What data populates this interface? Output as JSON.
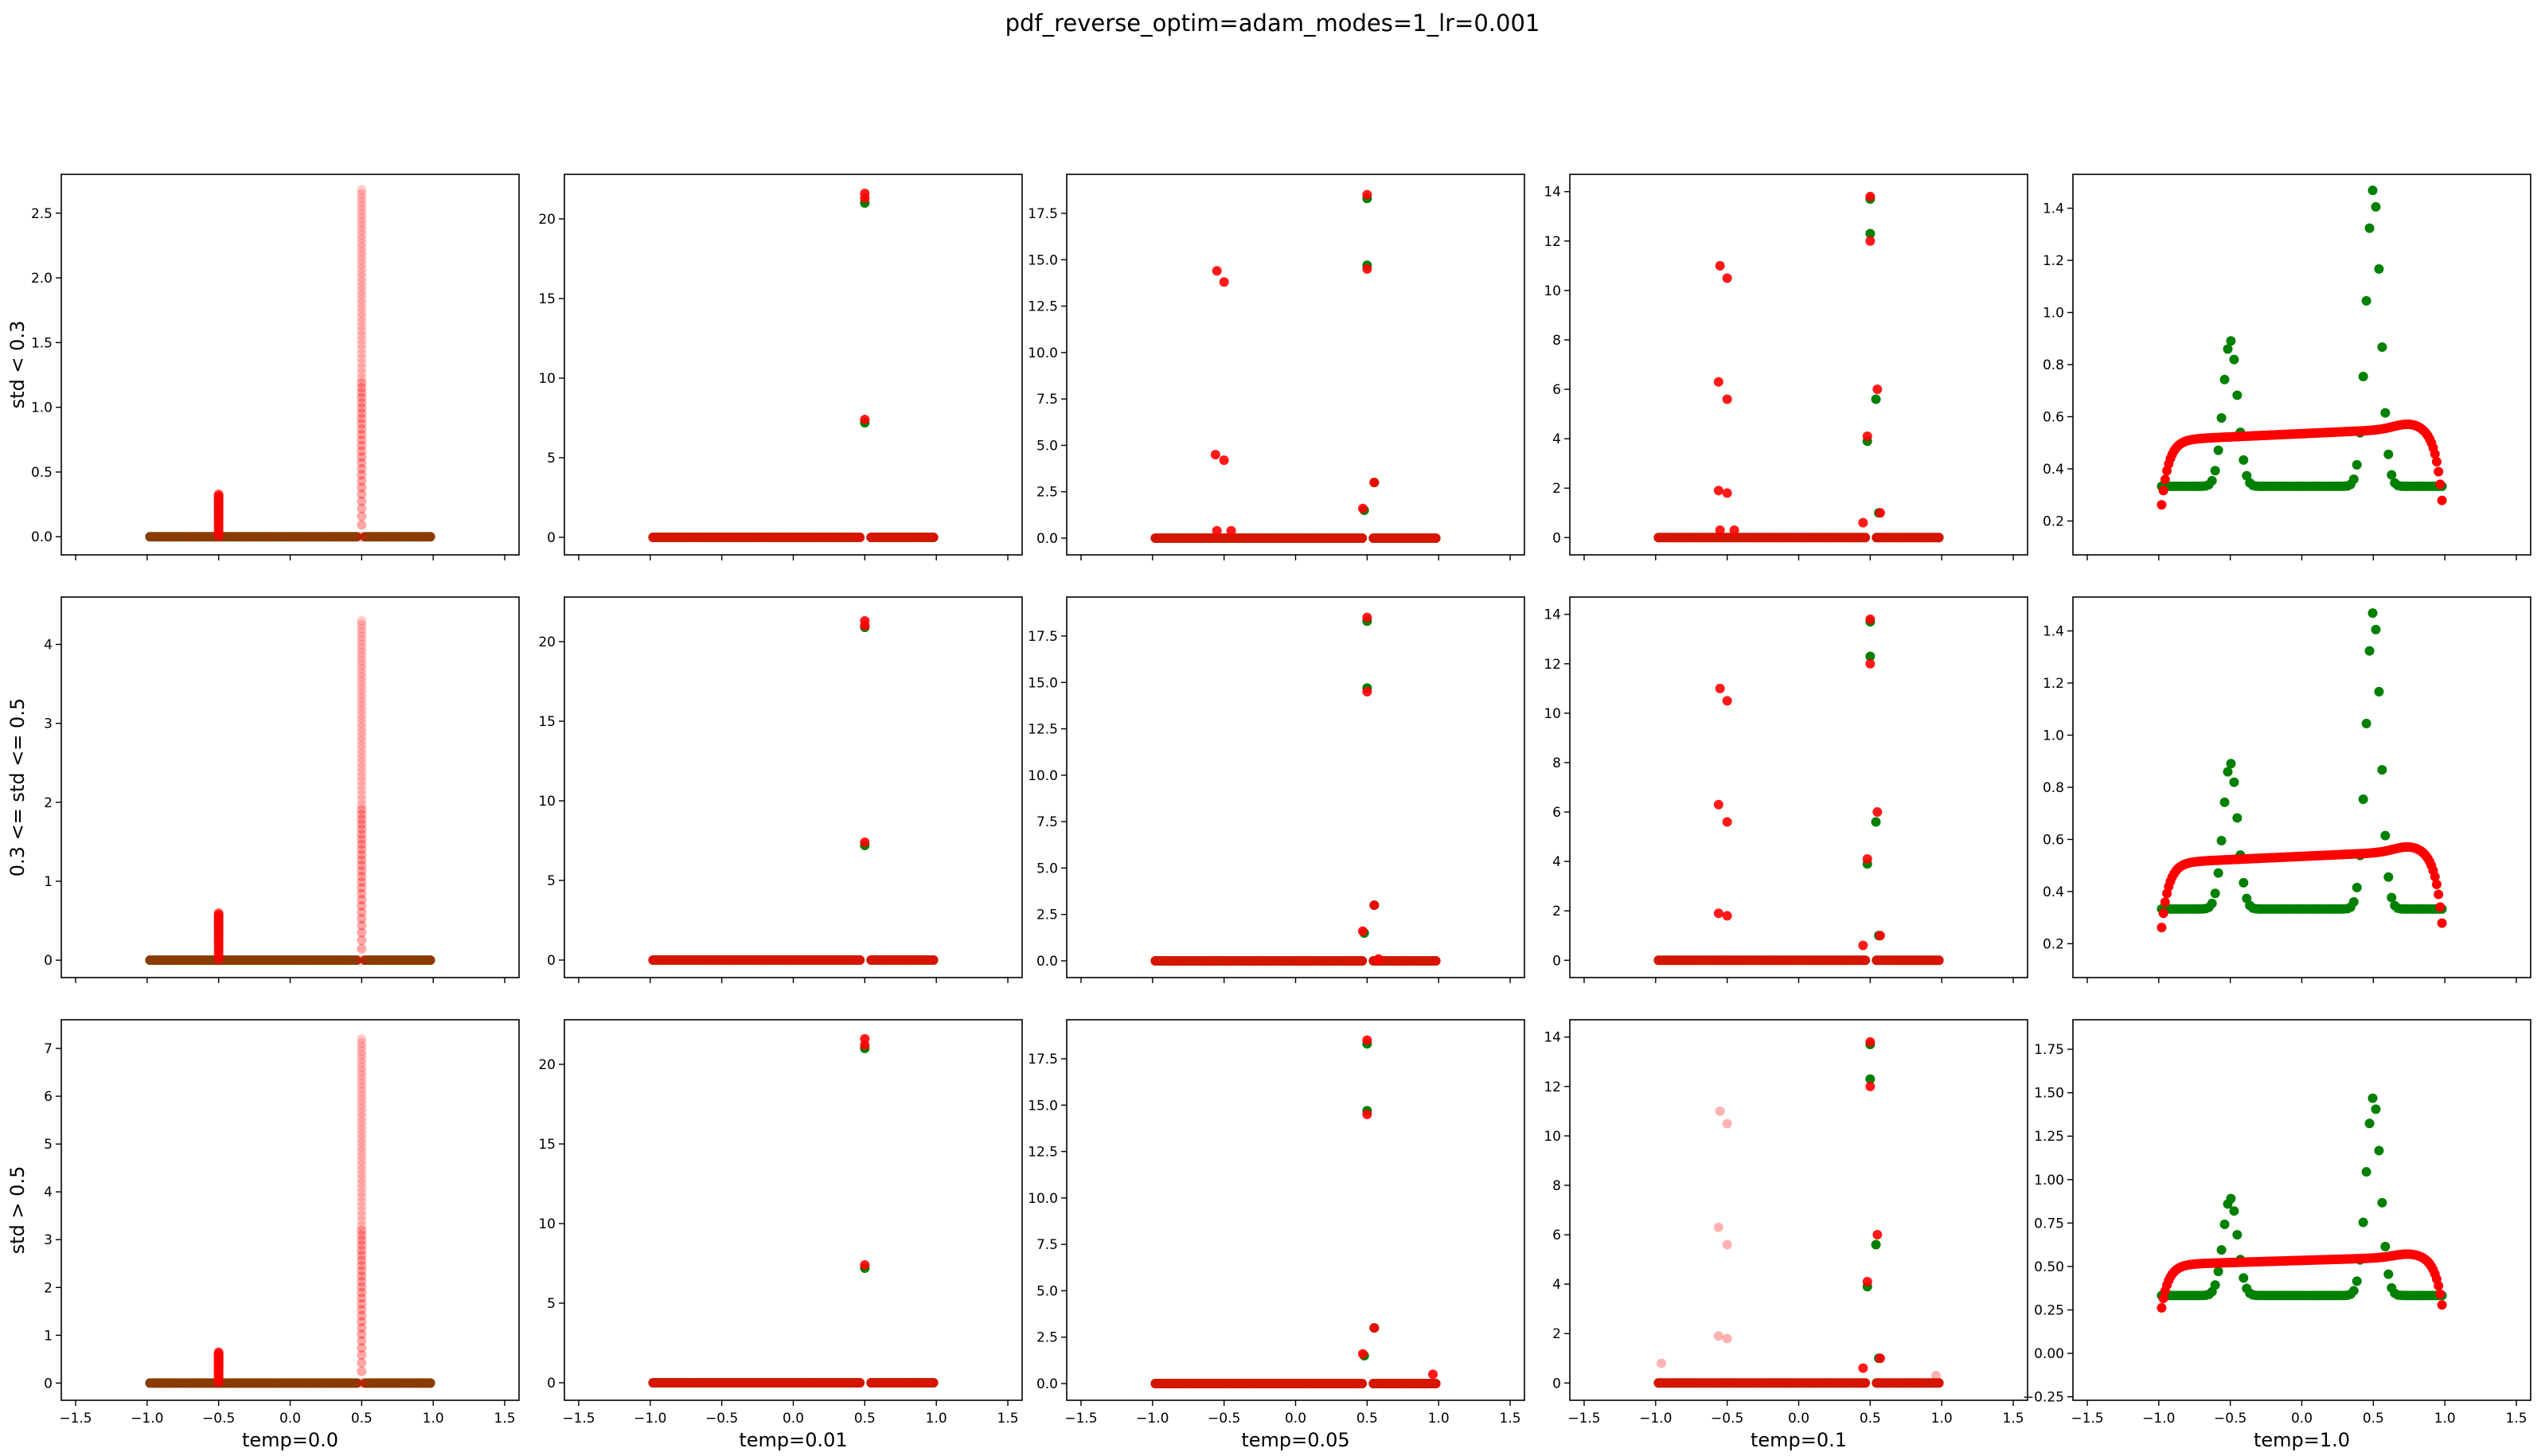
{
  "title": "pdf_reverse_optim=adam_modes=1_lr=0.001",
  "colors": {
    "target": "#008000",
    "model": "#ff0000",
    "axis": "#000000"
  },
  "row_labels": [
    "std < 0.3",
    "0.3 <= std <= 0.5",
    "std > 0.5"
  ],
  "col_labels": [
    "temp=0.0",
    "temp=0.01",
    "temp=0.05",
    "temp=0.1",
    "temp=1.0"
  ],
  "chart_data": {
    "type": "scatter",
    "title": "pdf_reverse_optim=adam_modes=1_lr=0.001",
    "xlim": [
      -1.6,
      1.6
    ],
    "x_ticks": [
      "−1.5",
      "−1.0",
      "−0.5",
      "0.0",
      "0.5",
      "1.0",
      "1.5"
    ],
    "x_tick_values": [
      -1.5,
      -1.0,
      -0.5,
      0.0,
      0.5,
      1.0,
      1.5
    ],
    "sharex": true,
    "panels": [
      {
        "row": 0,
        "col": 0,
        "xlabel": "",
        "ylabel": "std < 0.3",
        "ylim": [
          -0.14,
          2.8
        ],
        "yticks": [
          0.0,
          0.5,
          1.0,
          1.5,
          2.0,
          2.5
        ],
        "ytick_labels": [
          "0.0",
          "0.5",
          "1.0",
          "1.5",
          "2.0",
          "2.5"
        ],
        "style": "zerotemp",
        "column_peaks": [
          {
            "x": -0.5,
            "top": 0.33
          },
          {
            "x": 0.5,
            "top": 2.68
          }
        ]
      },
      {
        "row": 0,
        "col": 1,
        "xlabel": "",
        "ylabel": "",
        "ylim": [
          -1.1,
          22.8
        ],
        "yticks": [
          0,
          5,
          10,
          15,
          20
        ],
        "ytick_labels": [
          "0",
          "5",
          "10",
          "15",
          "20"
        ],
        "style": "discrete",
        "green_points": [
          [
            0.5,
            21.0
          ],
          [
            0.5,
            7.2
          ]
        ],
        "red_points": [
          [
            0.5,
            21.6
          ],
          [
            0.5,
            21.3
          ],
          [
            0.5,
            7.4
          ]
        ]
      },
      {
        "row": 0,
        "col": 2,
        "xlabel": "",
        "ylabel": "",
        "ylim": [
          -0.9,
          19.6
        ],
        "yticks": [
          0.0,
          2.5,
          5.0,
          7.5,
          10.0,
          12.5,
          15.0,
          17.5
        ],
        "ytick_labels": [
          "0.0",
          "2.5",
          "5.0",
          "7.5",
          "10.0",
          "12.5",
          "15.0",
          "17.5"
        ],
        "style": "discrete",
        "green_points": [
          [
            0.5,
            18.3
          ],
          [
            0.5,
            14.7
          ],
          [
            0.55,
            3.0
          ],
          [
            0.48,
            1.5
          ]
        ],
        "red_points": [
          [
            0.5,
            18.5
          ],
          [
            0.5,
            14.5
          ],
          [
            -0.55,
            14.4
          ],
          [
            -0.5,
            13.8
          ],
          [
            -0.56,
            4.5
          ],
          [
            -0.5,
            4.2
          ],
          [
            0.55,
            3.0
          ],
          [
            0.47,
            1.6
          ],
          [
            -0.55,
            0.4
          ],
          [
            -0.45,
            0.4
          ]
        ]
      },
      {
        "row": 0,
        "col": 3,
        "xlabel": "",
        "ylabel": "",
        "ylim": [
          -0.7,
          14.7
        ],
        "yticks": [
          0,
          2,
          4,
          6,
          8,
          10,
          12,
          14
        ],
        "ytick_labels": [
          "0",
          "2",
          "4",
          "6",
          "8",
          "10",
          "12",
          "14"
        ],
        "style": "discrete",
        "green_points": [
          [
            0.5,
            13.7
          ],
          [
            0.5,
            12.3
          ],
          [
            0.54,
            5.6
          ],
          [
            0.48,
            3.9
          ],
          [
            0.56,
            1.0
          ]
        ],
        "red_points": [
          [
            0.5,
            13.8
          ],
          [
            0.5,
            12.0
          ],
          [
            -0.55,
            11.0
          ],
          [
            -0.5,
            10.5
          ],
          [
            -0.56,
            6.3
          ],
          [
            -0.5,
            5.6
          ],
          [
            0.55,
            6.0
          ],
          [
            0.48,
            4.1
          ],
          [
            -0.56,
            1.9
          ],
          [
            -0.5,
            1.8
          ],
          [
            0.45,
            0.6
          ],
          [
            0.57,
            1.0
          ],
          [
            -0.55,
            0.3
          ],
          [
            -0.45,
            0.3
          ]
        ]
      },
      {
        "row": 0,
        "col": 4,
        "xlabel": "",
        "ylabel": "",
        "ylim": [
          0.07,
          1.53
        ],
        "yticks": [
          0.2,
          0.4,
          0.6,
          0.8,
          1.0,
          1.2,
          1.4
        ],
        "ytick_labels": [
          "0.2",
          "0.4",
          "0.6",
          "0.8",
          "1.0",
          "1.2",
          "1.4"
        ],
        "style": "continuous"
      },
      {
        "row": 1,
        "col": 0,
        "xlabel": "",
        "ylabel": "0.3 <= std <= 0.5",
        "ylim": [
          -0.22,
          4.6
        ],
        "yticks": [
          0,
          1,
          2,
          3,
          4
        ],
        "ytick_labels": [
          "0",
          "1",
          "2",
          "3",
          "4"
        ],
        "style": "zerotemp",
        "column_peaks": [
          {
            "x": -0.5,
            "top": 0.6
          },
          {
            "x": 0.5,
            "top": 4.3
          }
        ]
      },
      {
        "row": 1,
        "col": 1,
        "xlabel": "",
        "ylabel": "",
        "ylim": [
          -1.1,
          22.8
        ],
        "yticks": [
          0,
          5,
          10,
          15,
          20
        ],
        "ytick_labels": [
          "0",
          "5",
          "10",
          "15",
          "20"
        ],
        "style": "discrete",
        "green_points": [
          [
            0.5,
            20.9
          ],
          [
            0.5,
            7.2
          ]
        ],
        "red_points": [
          [
            0.5,
            21.3
          ],
          [
            0.5,
            21.0
          ],
          [
            0.5,
            7.4
          ]
        ]
      },
      {
        "row": 1,
        "col": 2,
        "xlabel": "",
        "ylabel": "",
        "ylim": [
          -0.9,
          19.6
        ],
        "yticks": [
          0.0,
          2.5,
          5.0,
          7.5,
          10.0,
          12.5,
          15.0,
          17.5
        ],
        "ytick_labels": [
          "0.0",
          "2.5",
          "5.0",
          "7.5",
          "10.0",
          "12.5",
          "15.0",
          "17.5"
        ],
        "style": "discrete",
        "green_points": [
          [
            0.5,
            18.3
          ],
          [
            0.5,
            14.7
          ],
          [
            0.55,
            3.0
          ],
          [
            0.48,
            1.5
          ]
        ],
        "red_points": [
          [
            0.5,
            18.5
          ],
          [
            0.5,
            14.5
          ],
          [
            0.55,
            3.0
          ],
          [
            0.47,
            1.6
          ],
          [
            0.58,
            0.1
          ]
        ]
      },
      {
        "row": 1,
        "col": 3,
        "xlabel": "",
        "ylabel": "",
        "ylim": [
          -0.7,
          14.7
        ],
        "yticks": [
          0,
          2,
          4,
          6,
          8,
          10,
          12,
          14
        ],
        "ytick_labels": [
          "0",
          "2",
          "4",
          "6",
          "8",
          "10",
          "12",
          "14"
        ],
        "style": "discrete",
        "green_points": [
          [
            0.5,
            13.7
          ],
          [
            0.5,
            12.3
          ],
          [
            0.54,
            5.6
          ],
          [
            0.48,
            3.9
          ],
          [
            0.56,
            1.0
          ]
        ],
        "red_points": [
          [
            0.5,
            13.8
          ],
          [
            0.5,
            12.0
          ],
          [
            -0.55,
            11.0
          ],
          [
            -0.5,
            10.5
          ],
          [
            -0.56,
            6.3
          ],
          [
            -0.5,
            5.6
          ],
          [
            0.55,
            6.0
          ],
          [
            0.48,
            4.1
          ],
          [
            -0.56,
            1.9
          ],
          [
            -0.5,
            1.8
          ],
          [
            0.45,
            0.6
          ],
          [
            0.57,
            1.0
          ]
        ]
      },
      {
        "row": 1,
        "col": 4,
        "xlabel": "",
        "ylabel": "",
        "ylim": [
          0.07,
          1.53
        ],
        "yticks": [
          0.2,
          0.4,
          0.6,
          0.8,
          1.0,
          1.2,
          1.4
        ],
        "ytick_labels": [
          "0.2",
          "0.4",
          "0.6",
          "0.8",
          "1.0",
          "1.2",
          "1.4"
        ],
        "style": "continuous"
      },
      {
        "row": 2,
        "col": 0,
        "xlabel": "temp=0.0",
        "ylabel": "std > 0.5",
        "ylim": [
          -0.36,
          7.6
        ],
        "yticks": [
          0,
          1,
          2,
          3,
          4,
          5,
          6,
          7
        ],
        "ytick_labels": [
          "0",
          "1",
          "2",
          "3",
          "4",
          "5",
          "6",
          "7"
        ],
        "style": "zerotemp",
        "column_peaks": [
          {
            "x": -0.5,
            "top": 0.65
          },
          {
            "x": 0.5,
            "top": 7.2
          }
        ]
      },
      {
        "row": 2,
        "col": 1,
        "xlabel": "temp=0.01",
        "ylabel": "",
        "ylim": [
          -1.1,
          22.8
        ],
        "yticks": [
          0,
          5,
          10,
          15,
          20
        ],
        "ytick_labels": [
          "0",
          "5",
          "10",
          "15",
          "20"
        ],
        "style": "discrete",
        "green_points": [
          [
            0.5,
            21.0
          ],
          [
            0.5,
            7.2
          ]
        ],
        "red_points": [
          [
            0.5,
            21.6
          ],
          [
            0.5,
            21.2
          ],
          [
            0.5,
            7.4
          ]
        ]
      },
      {
        "row": 2,
        "col": 2,
        "xlabel": "temp=0.05",
        "ylabel": "",
        "ylim": [
          -0.9,
          19.6
        ],
        "yticks": [
          0.0,
          2.5,
          5.0,
          7.5,
          10.0,
          12.5,
          15.0,
          17.5
        ],
        "ytick_labels": [
          "0.0",
          "2.5",
          "5.0",
          "7.5",
          "10.0",
          "12.5",
          "15.0",
          "17.5"
        ],
        "style": "discrete",
        "green_points": [
          [
            0.5,
            18.3
          ],
          [
            0.5,
            14.7
          ],
          [
            0.55,
            3.0
          ],
          [
            0.48,
            1.5
          ]
        ],
        "red_points": [
          [
            0.5,
            18.5
          ],
          [
            0.5,
            14.5
          ],
          [
            0.55,
            3.0
          ],
          [
            0.47,
            1.6
          ],
          [
            0.96,
            0.5
          ]
        ]
      },
      {
        "row": 2,
        "col": 3,
        "xlabel": "temp=0.1",
        "ylabel": "",
        "ylim": [
          -0.7,
          14.7
        ],
        "yticks": [
          0,
          2,
          4,
          6,
          8,
          10,
          12,
          14
        ],
        "ytick_labels": [
          "0",
          "2",
          "4",
          "6",
          "8",
          "10",
          "12",
          "14"
        ],
        "style": "discrete",
        "green_points": [
          [
            0.5,
            13.7
          ],
          [
            0.5,
            12.3
          ],
          [
            0.54,
            5.6
          ],
          [
            0.48,
            3.9
          ],
          [
            0.56,
            1.0
          ]
        ],
        "red_points": [
          [
            0.5,
            13.8
          ],
          [
            0.5,
            12.0
          ],
          [
            0.55,
            6.0
          ],
          [
            0.48,
            4.1
          ],
          [
            0.45,
            0.6
          ],
          [
            0.57,
            1.0
          ]
        ],
        "faint_red_points": [
          [
            -0.55,
            11.0
          ],
          [
            -0.5,
            10.5
          ],
          [
            -0.56,
            6.3
          ],
          [
            -0.5,
            5.6
          ],
          [
            -0.56,
            1.9
          ],
          [
            -0.5,
            1.8
          ],
          [
            -0.96,
            0.8
          ],
          [
            0.96,
            0.3
          ]
        ]
      },
      {
        "row": 2,
        "col": 4,
        "xlabel": "temp=1.0",
        "ylabel": "",
        "ylim": [
          -0.27,
          1.92
        ],
        "yticks": [
          -0.25,
          0.0,
          0.25,
          0.5,
          0.75,
          1.0,
          1.25,
          1.5,
          1.75
        ],
        "ytick_labels": [
          "−0.25",
          "0.00",
          "0.25",
          "0.50",
          "0.75",
          "1.00",
          "1.25",
          "1.50",
          "1.75"
        ],
        "style": "continuous"
      }
    ],
    "continuous_target": {
      "series_color": "#008000",
      "base": 0.333,
      "modes": [
        {
          "mu": -0.5,
          "sigma": 0.05,
          "height": 0.56
        },
        {
          "mu": 0.5,
          "sigma": 0.05,
          "height": 1.14
        }
      ],
      "x_range": [
        -0.98,
        0.98
      ]
    },
    "continuous_model": {
      "series_color": "#ff0000",
      "plateau_left": 0.51,
      "plateau_right": 0.56,
      "x_peak": 0.75,
      "edge_value": 0.14,
      "x_range": [
        -0.98,
        0.98
      ]
    }
  }
}
